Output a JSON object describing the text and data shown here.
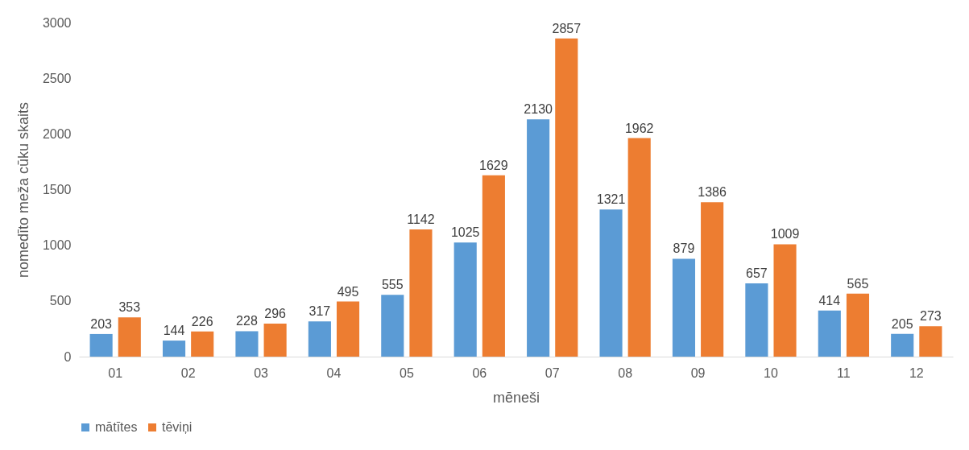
{
  "chart_data": {
    "type": "bar",
    "xlabel": "mēneši",
    "ylabel": "nomedīto meža cūku skaits",
    "categories": [
      "01",
      "02",
      "03",
      "04",
      "05",
      "06",
      "07",
      "08",
      "09",
      "10",
      "11",
      "12"
    ],
    "series": [
      {
        "name": "mātītes",
        "color": "#5b9bd5",
        "values": [
          203,
          144,
          228,
          317,
          555,
          1025,
          2130,
          1321,
          879,
          657,
          414,
          205
        ]
      },
      {
        "name": "tēviņi",
        "color": "#ed7d31",
        "values": [
          353,
          226,
          296,
          495,
          1142,
          1629,
          2857,
          1962,
          1386,
          1009,
          565,
          273
        ]
      }
    ],
    "ylim": [
      0,
      3000
    ],
    "yticks": [
      0,
      500,
      1000,
      1500,
      2000,
      2500,
      3000
    ],
    "data_labels": true,
    "legend": "bottom"
  }
}
